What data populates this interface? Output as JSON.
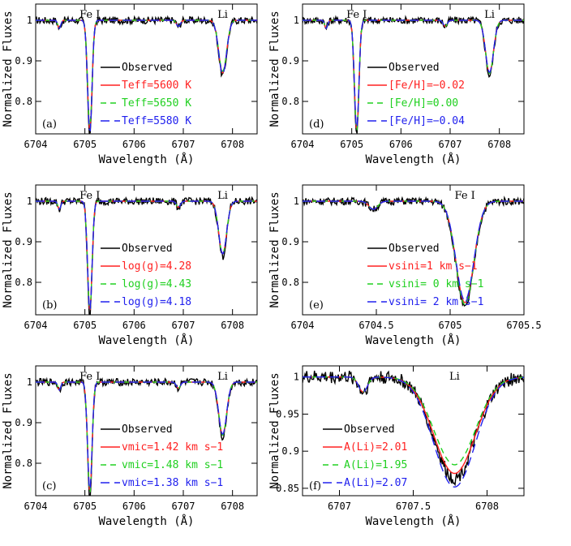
{
  "colors": {
    "observed": "#000000",
    "model1": "#ff2020",
    "model2": "#20d020",
    "model3": "#2020ee"
  },
  "chart_data": [
    {
      "type": "line",
      "panel_label": "(a)",
      "xlabel": "Wavelength (Å)",
      "ylabel": "Normalized Fluxes",
      "xlim": [
        6704.0,
        6708.5
      ],
      "ylim": [
        0.72,
        1.04
      ],
      "xticks": [
        6704,
        6705,
        6706,
        6707,
        6708
      ],
      "yticks": [
        0.8,
        0.9,
        1
      ],
      "annotations": [
        {
          "text": "Fe I",
          "x": 6705.1
        },
        {
          "text": "Li",
          "x": 6707.8
        }
      ],
      "lines": [
        {
          "center": 6705.1,
          "depth": 0.27,
          "width": 0.045
        },
        {
          "center": 6707.8,
          "depth": 0.13,
          "width": 0.08
        }
      ],
      "legend": [
        {
          "label": "Observed",
          "style": "observed",
          "color": "#000000"
        },
        {
          "label": "Teff=5600 K",
          "style": "model1",
          "color": "#ff2020",
          "depth_scale": 1.0
        },
        {
          "label": "Teff=5650 K",
          "style": "model2",
          "color": "#20d020",
          "depth_scale": 0.97
        },
        {
          "label": "Teff=5580 K",
          "style": "model3",
          "color": "#2020ee",
          "depth_scale": 1.02
        }
      ]
    },
    {
      "type": "line",
      "panel_label": "(d)",
      "xlabel": "Wavelength (Å)",
      "ylabel": "Normalized Fluxes",
      "xlim": [
        6704.0,
        6708.5
      ],
      "ylim": [
        0.72,
        1.04
      ],
      "xticks": [
        6704,
        6705,
        6706,
        6707,
        6708
      ],
      "yticks": [
        0.8,
        0.9,
        1
      ],
      "annotations": [
        {
          "text": "Fe I",
          "x": 6705.1
        },
        {
          "text": "Li",
          "x": 6707.8
        }
      ],
      "lines": [
        {
          "center": 6705.1,
          "depth": 0.27,
          "width": 0.045
        },
        {
          "center": 6707.8,
          "depth": 0.13,
          "width": 0.08
        }
      ],
      "legend": [
        {
          "label": "Observed",
          "style": "observed",
          "color": "#000000"
        },
        {
          "label": "[Fe/H]=−0.02",
          "style": "model1",
          "color": "#ff2020",
          "depth_scale": 1.0
        },
        {
          "label": "[Fe/H]=0.00",
          "style": "model2",
          "color": "#20d020",
          "depth_scale": 1.01
        },
        {
          "label": "[Fe/H]=−0.04",
          "style": "model3",
          "color": "#2020ee",
          "depth_scale": 0.99
        }
      ]
    },
    {
      "type": "line",
      "panel_label": "(b)",
      "xlabel": "Wavelength (Å)",
      "ylabel": "Normalized Fluxes",
      "xlim": [
        6704.0,
        6708.5
      ],
      "ylim": [
        0.72,
        1.04
      ],
      "xticks": [
        6704,
        6705,
        6706,
        6707,
        6708
      ],
      "yticks": [
        0.8,
        0.9,
        1
      ],
      "annotations": [
        {
          "text": "Fe I",
          "x": 6705.1
        },
        {
          "text": "Li",
          "x": 6707.8
        }
      ],
      "lines": [
        {
          "center": 6705.1,
          "depth": 0.27,
          "width": 0.045
        },
        {
          "center": 6707.8,
          "depth": 0.13,
          "width": 0.08
        }
      ],
      "legend": [
        {
          "label": "Observed",
          "style": "observed",
          "color": "#000000"
        },
        {
          "label": "log(g)=4.28",
          "style": "model1",
          "color": "#ff2020",
          "depth_scale": 1.0
        },
        {
          "label": "log(g)=4.43",
          "style": "model2",
          "color": "#20d020",
          "depth_scale": 1.0
        },
        {
          "label": "log(g)=4.18",
          "style": "model3",
          "color": "#2020ee",
          "depth_scale": 1.0
        }
      ]
    },
    {
      "type": "line",
      "panel_label": "(e)",
      "xlabel": "Wavelength (Å)",
      "ylabel": "Normalized Fluxes",
      "xlim": [
        6704.0,
        6705.5
      ],
      "ylim": [
        0.72,
        1.04
      ],
      "xticks": [
        6704,
        6704.5,
        6705,
        6705.5
      ],
      "yticks": [
        0.8,
        0.9,
        1
      ],
      "annotations": [
        {
          "text": "Fe I",
          "x": 6705.1
        }
      ],
      "lines": [
        {
          "center": 6705.1,
          "depth": 0.25,
          "width": 0.06
        }
      ],
      "legend": [
        {
          "label": "Observed",
          "style": "observed",
          "color": "#000000"
        },
        {
          "label": "vsini=1 km s−1",
          "style": "model1",
          "color": "#ff2020",
          "depth_scale": 1.0
        },
        {
          "label": "vsini= 0 km s−1",
          "style": "model2",
          "color": "#20d020",
          "depth_scale": 1.02
        },
        {
          "label": "vsini= 2 km s−1",
          "style": "model3",
          "color": "#2020ee",
          "depth_scale": 0.98
        }
      ]
    },
    {
      "type": "line",
      "panel_label": "(c)",
      "xlabel": "Wavelength (Å)",
      "ylabel": "Normalized Fluxes",
      "xlim": [
        6704.0,
        6708.5
      ],
      "ylim": [
        0.72,
        1.04
      ],
      "xticks": [
        6704,
        6705,
        6706,
        6707,
        6708
      ],
      "yticks": [
        0.8,
        0.9,
        1
      ],
      "annotations": [
        {
          "text": "Fe I",
          "x": 6705.1
        },
        {
          "text": "Li",
          "x": 6707.8
        }
      ],
      "lines": [
        {
          "center": 6705.1,
          "depth": 0.27,
          "width": 0.045
        },
        {
          "center": 6707.8,
          "depth": 0.13,
          "width": 0.08
        }
      ],
      "legend": [
        {
          "label": "Observed",
          "style": "observed",
          "color": "#000000"
        },
        {
          "label": "vmic=1.42 km s−1",
          "style": "model1",
          "color": "#ff2020",
          "depth_scale": 1.0
        },
        {
          "label": "vmic=1.48 km s−1",
          "style": "model2",
          "color": "#20d020",
          "depth_scale": 1.01
        },
        {
          "label": "vmic=1.38 km s−1",
          "style": "model3",
          "color": "#2020ee",
          "depth_scale": 0.99
        }
      ]
    },
    {
      "type": "line",
      "panel_label": "(f)",
      "xlabel": "Wavelength (Å)",
      "ylabel": "Normalized Fluxes",
      "xlim": [
        6706.75,
        6708.25
      ],
      "ylim": [
        0.84,
        1.015
      ],
      "xticks": [
        6707,
        6707.5,
        6708
      ],
      "yticks": [
        0.85,
        0.9,
        0.95,
        1
      ],
      "annotations": [
        {
          "text": "Li",
          "x": 6707.78
        }
      ],
      "lines": [
        {
          "center": 6707.78,
          "depth": 0.13,
          "width": 0.14
        }
      ],
      "legend": [
        {
          "label": "Observed",
          "style": "observed",
          "color": "#000000"
        },
        {
          "label": "A(Li)=2.01",
          "style": "model1",
          "color": "#ff2020",
          "depth_scale": 1.0
        },
        {
          "label": "A(Li)=1.95",
          "style": "model2",
          "color": "#20d020",
          "depth_scale": 0.91
        },
        {
          "label": "A(Li)=2.07",
          "style": "model3",
          "color": "#2020ee",
          "depth_scale": 1.14
        }
      ]
    }
  ]
}
